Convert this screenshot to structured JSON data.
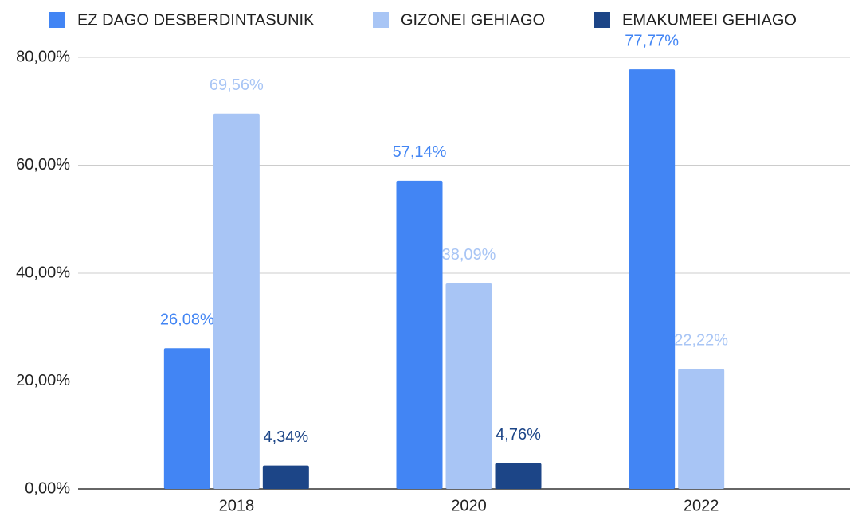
{
  "chart_data": {
    "type": "bar",
    "categories": [
      "2018",
      "2020",
      "2022"
    ],
    "series": [
      {
        "name": "EZ DAGO DESBERDINTASUNIK",
        "color": "#4285f4",
        "values": [
          26.08,
          57.14,
          77.77
        ],
        "value_labels": [
          "26,08%",
          "57,14%",
          "77,77%"
        ]
      },
      {
        "name": "GIZONEI GEHIAGO",
        "color": "#a8c5f5",
        "values": [
          69.56,
          38.09,
          22.22
        ],
        "value_labels": [
          "69,56%",
          "38,09%",
          "22,22%"
        ]
      },
      {
        "name": "EMAKUMEEI GEHIAGO",
        "color": "#1c4587",
        "values": [
          4.34,
          4.76,
          null
        ],
        "value_labels": [
          "4,34%",
          "4,76%",
          null
        ]
      }
    ],
    "ylim": [
      0,
      80
    ],
    "yticks": [
      {
        "value": 0,
        "label": "0,00%"
      },
      {
        "value": 20,
        "label": "20,00%"
      },
      {
        "value": 40,
        "label": "40,00%"
      },
      {
        "value": 60,
        "label": "60,00%"
      },
      {
        "value": 80,
        "label": "80,00%"
      }
    ],
    "grid": true,
    "legend": "top"
  }
}
